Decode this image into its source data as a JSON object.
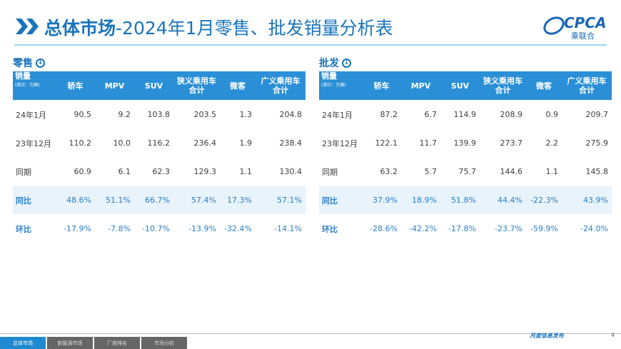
{
  "header": {
    "title_main": "总体市场",
    "title_rest": "-2024年1月零售、批发销量分析表",
    "logo_en": "CPCA",
    "logo_cn": "乘联合"
  },
  "tables": [
    {
      "section": "零售",
      "label": "销量",
      "unit": "(单位：万辆)",
      "columns": [
        [
          "轿车"
        ],
        [
          "MPV"
        ],
        [
          "SUV"
        ],
        [
          "狭义乘用车",
          "合计"
        ],
        [
          "微客"
        ],
        [
          "广义乘用车",
          "合计"
        ]
      ],
      "rows": [
        [
          "24年1月",
          "90.5",
          "9.2",
          "103.8",
          "203.5",
          "1.3",
          "204.8"
        ],
        [
          "23年12月",
          "110.2",
          "10.0",
          "116.2",
          "236.4",
          "1.9",
          "238.4"
        ],
        [
          "同期",
          "60.9",
          "6.1",
          "62.3",
          "129.3",
          "1.1",
          "130.4"
        ],
        [
          "同比",
          "48.6%",
          "51.1%",
          "66.7%",
          "57.4%",
          "17.3%",
          "57.1%"
        ],
        [
          "环比",
          "-17.9%",
          "-7.8%",
          "-10.7%",
          "-13.9%",
          "-32.4%",
          "-14.1%"
        ]
      ]
    },
    {
      "section": "批发",
      "label": "销量",
      "unit": "(单位：万辆)",
      "columns": [
        [
          "轿车"
        ],
        [
          "MPV"
        ],
        [
          "SUV"
        ],
        [
          "狭义乘用车",
          "合计"
        ],
        [
          "微客"
        ],
        [
          "广义乘用车",
          "合计"
        ]
      ],
      "rows": [
        [
          "24年1月",
          "87.2",
          "6.7",
          "114.9",
          "208.9",
          "0.9",
          "209.7"
        ],
        [
          "23年12月",
          "122.1",
          "11.7",
          "139.9",
          "273.7",
          "2.2",
          "275.9"
        ],
        [
          "同期",
          "63.2",
          "5.7",
          "75.7",
          "144.6",
          "1.1",
          "145.8"
        ],
        [
          "同比",
          "37.9%",
          "18.9%",
          "51.8%",
          "44.4%",
          "-22.3%",
          "43.9%"
        ],
        [
          "环比",
          "-28.6%",
          "-42.2%",
          "-17.8%",
          "-23.7%",
          "-59.9%",
          "-24.0%"
        ]
      ]
    }
  ],
  "footer": {
    "tabs": [
      "总体市场",
      "新能源市场",
      "厂商排名",
      "市场分析"
    ],
    "note": "月度信息发布",
    "page": "4"
  }
}
